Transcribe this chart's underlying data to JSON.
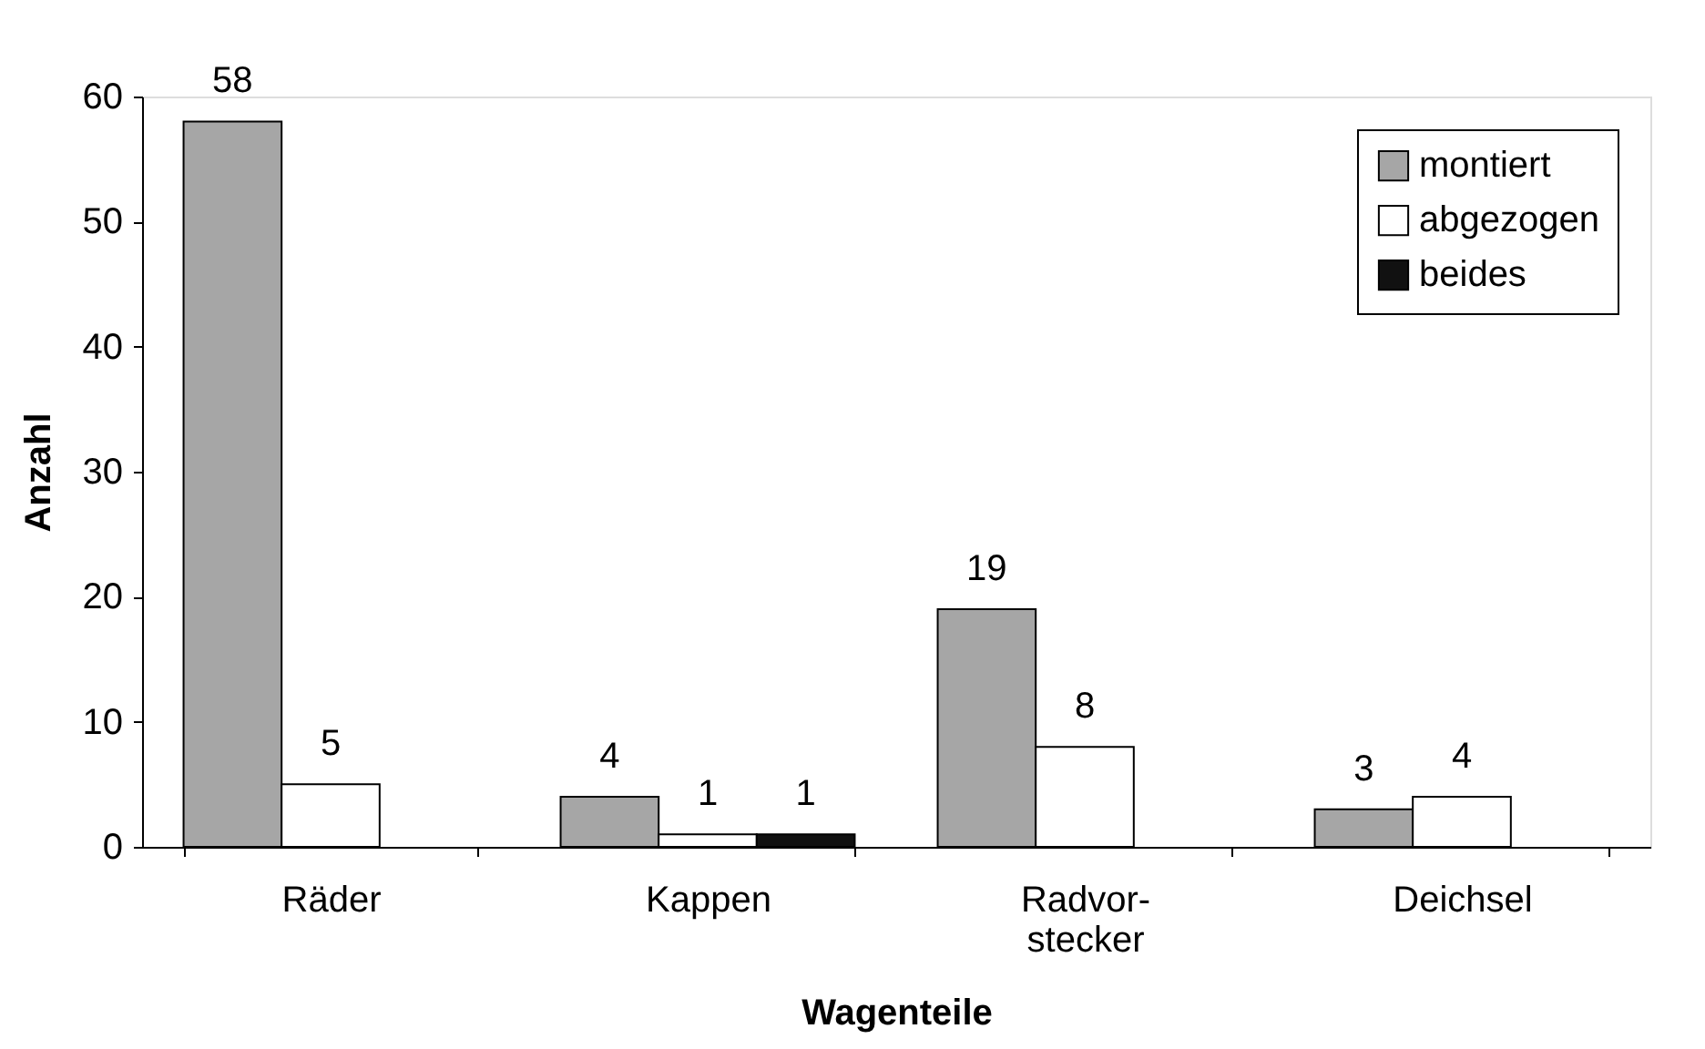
{
  "chart_data": {
    "type": "bar",
    "xlabel": "Wagenteile",
    "ylabel": "Anzahl",
    "categories": [
      "Räder",
      "Kappen",
      "Radvor-\nstecker",
      "Deichsel"
    ],
    "series": [
      {
        "name": "montiert",
        "color": "#a6a6a6",
        "values": [
          58,
          4,
          19,
          3
        ]
      },
      {
        "name": "abgezogen",
        "color": "#ffffff",
        "values": [
          5,
          1,
          8,
          4
        ]
      },
      {
        "name": "beides",
        "color": "#111111",
        "values": [
          null,
          1,
          null,
          null
        ]
      }
    ],
    "ylim": [
      0,
      60
    ],
    "yticks": [
      0,
      10,
      20,
      30,
      40,
      50,
      60
    ],
    "grid": false,
    "legend": "top right",
    "data_labels": true
  }
}
